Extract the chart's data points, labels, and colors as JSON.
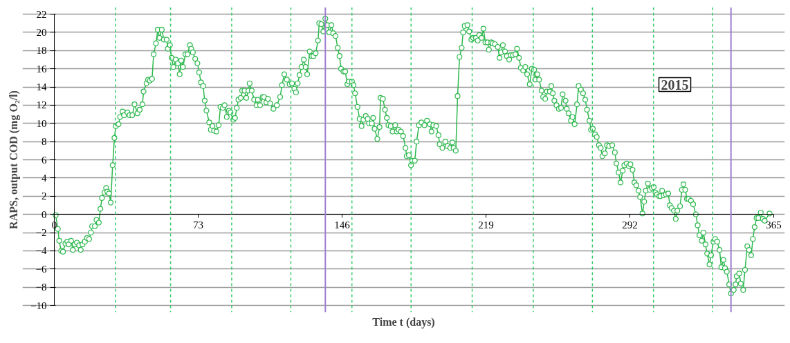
{
  "chart_data": {
    "type": "line",
    "xlabel": "Time t (days)",
    "ylabel": "RAPS, output COD (mg O₂/l)",
    "annotations": [
      "2015"
    ],
    "x": [
      0.7,
      1.8,
      2.5,
      3.5,
      4.4,
      5.6,
      6.6,
      7.3,
      8.6,
      9.4,
      10.4,
      11.5,
      12.6,
      13.4,
      14.3,
      15.5,
      16.6,
      17.7,
      18.6,
      19.2,
      20.6,
      21.4,
      22.6,
      23.4,
      24.2,
      25.5,
      26.3,
      26.9,
      27.8,
      28.6,
      29.6,
      30.5,
      31.2,
      32.6,
      33.4,
      34.6,
      35.4,
      37.1,
      38.2,
      39.6,
      40.7,
      42.2,
      43.3,
      44.7,
      45.3,
      46.8,
      47.6,
      48.5,
      49.6,
      50.4,
      51.6,
      52.5,
      53.4,
      54.5,
      55.6,
      57.0,
      57.6,
      58.7,
      59.5,
      60.4,
      61.6,
      62.7,
      63.6,
      64.4,
      65.3,
      66.5,
      67.6,
      68.8,
      69.5,
      70.3,
      71.5,
      72.6,
      73.5,
      74.4,
      75.5,
      76.3,
      77.2,
      78.6,
      79.4,
      80.3,
      81.1,
      82.3,
      83.4,
      84.3,
      85.5,
      86.4,
      87.5,
      88.6,
      89.4,
      90.8,
      91.7,
      92.6,
      93.4,
      94.6,
      95.3,
      96.5,
      97.4,
      98.5,
      99.1,
      100.2,
      101.4,
      102.6,
      103.3,
      104.4,
      105.7,
      106.5,
      107.6,
      108.4,
      109.5,
      111.2,
      112.9,
      114.6,
      115.5,
      116.7,
      118.0,
      119.4,
      120.6,
      121.8,
      122.6,
      123.5,
      124.4,
      125.4,
      126.6,
      127.5,
      128.3,
      129.6,
      130.6,
      131.5,
      132.6,
      133.8,
      134.4,
      135.5,
      136.5,
      137.5,
      138.6,
      139.5,
      140.6,
      141.5,
      142.7,
      143.8,
      144.7,
      145.5,
      146.7,
      147.6,
      148.7,
      149.5,
      151.0,
      151.8,
      152.6,
      153.8,
      154.9,
      155.9,
      156.8,
      158.0,
      159.0,
      159.7,
      161.1,
      161.8,
      162.5,
      163.9,
      165.0,
      165.5,
      166.7,
      167.8,
      168.7,
      169.5,
      170.7,
      171.6,
      173.0,
      173.8,
      174.7,
      175.9,
      177.0,
      178.2,
      178.8,
      179.9,
      181.0,
      181.6,
      182.9,
      183.8,
      185.0,
      186.3,
      187.8,
      189.1,
      190.6,
      191.4,
      192.3,
      193.8,
      194.9,
      195.5,
      196.9,
      198.4,
      199.5,
      200.9,
      202.0,
      202.6,
      203.7,
      204.6,
      205.6,
      206.7,
      207.4,
      208.2,
      209.6,
      210.5,
      211.6,
      212.5,
      213.9,
      214.8,
      215.6,
      216.8,
      217.7,
      218.7,
      219.8,
      220.5,
      221.7,
      222.5,
      223.6,
      225.0,
      225.9,
      226.7,
      227.6,
      228.7,
      229.6,
      230.8,
      231.6,
      232.7,
      233.9,
      234.8,
      235.8,
      236.7,
      237.9,
      239.0,
      239.9,
      241.2,
      242.3,
      243.4,
      244.0,
      245.1,
      246.0,
      247.2,
      248.0,
      249.1,
      249.9,
      251.4,
      252.2,
      252.9,
      253.7,
      254.8,
      256.0,
      257.1,
      257.9,
      259.4,
      260.0,
      260.9,
      262.1,
      262.9,
      264.0,
      265.2,
      266.0,
      267.2,
      268.3,
      269.4,
      270.3,
      271.5,
      272.3,
      273.2,
      274.3,
      275.2,
      276.3,
      277.2,
      278.1,
      279.3,
      280.4,
      281.5,
      283.1,
      284.4,
      285.2,
      286.3,
      287.3,
      288.4,
      289.2,
      290.4,
      291.5,
      292.3,
      293.4,
      294.3,
      295.3,
      296.4,
      297.2,
      298.4,
      299.3,
      300.1,
      301.2,
      302.1,
      303.3,
      304.1,
      305.0,
      305.8,
      306.9,
      307.5,
      308.4,
      309.2,
      310.3,
      311.5,
      312.3,
      313.2,
      314.4,
      315.3,
      316.1,
      317.5,
      318.4,
      319.2,
      320.1,
      321.0,
      321.8,
      323.0,
      324.1,
      325.5,
      326.4,
      327.3,
      328.5,
      329.3,
      330.4,
      331.2,
      332.4,
      333.2,
      334.4,
      335.3,
      336.3,
      337.5,
      338.4,
      339.5,
      340.3,
      341.2,
      342.4,
      343.3,
      344.7,
      345.6,
      346.2,
      347.5,
      348.3,
      349.5,
      350.4,
      351.6,
      352.5,
      353.6,
      354.4,
      355.3,
      356.3,
      357.2,
      358.4,
      359.5,
      360.4,
      362.9
    ],
    "series": [
      {
        "color": "#2db84d",
        "values": [
          -0.1,
          -1.6,
          -2.9,
          -4.0,
          -4.1,
          -3.2,
          -3.0,
          -3.3,
          -2.9,
          -3.9,
          -3.3,
          -3.1,
          -3.4,
          -3.9,
          -3.3,
          -3.0,
          -2.6,
          -2.7,
          -2.0,
          -1.3,
          -1.3,
          -0.6,
          -0.9,
          0.6,
          1.8,
          2.4,
          2.9,
          2.5,
          2.3,
          1.3,
          5.4,
          8.4,
          9.7,
          9.9,
          10.7,
          11.3,
          10.9,
          11.2,
          10.9,
          10.9,
          12.1,
          11.1,
          11.5,
          12.1,
          13.5,
          14.4,
          14.8,
          14.7,
          14.9,
          17.6,
          18.8,
          20.3,
          19.4,
          20.3,
          19.2,
          19.2,
          18.2,
          18.6,
          17.2,
          16.2,
          17.0,
          16.6,
          15.4,
          16.9,
          16.2,
          17.6,
          17.6,
          18.6,
          18.2,
          17.8,
          17.1,
          16.6,
          15.6,
          14.5,
          14.1,
          12.5,
          11.4,
          10.1,
          9.3,
          9.7,
          9.2,
          9.1,
          9.8,
          11.8,
          11.7,
          12.0,
          10.7,
          11.4,
          11.2,
          10.4,
          10.6,
          11.7,
          12.6,
          12.8,
          13.6,
          13.6,
          12.8,
          13.6,
          14.4,
          13.6,
          12.6,
          12.0,
          12.6,
          12.0,
          12.9,
          12.9,
          12.3,
          12.7,
          12.2,
          11.6,
          12.0,
          12.9,
          14.2,
          15.4,
          14.8,
          14.3,
          14.4,
          13.8,
          13.4,
          14.4,
          15.3,
          16.2,
          17.0,
          16.2,
          15.4,
          17.9,
          17.4,
          17.4,
          17.7,
          19.1,
          21.0,
          20.9,
          20.1,
          21.5,
          20.8,
          20.0,
          20.8,
          19.9,
          19.6,
          18.3,
          17.4,
          16.0,
          15.7,
          15.7,
          14.3,
          14.6,
          14.6,
          14.2,
          13.3,
          11.8,
          10.5,
          9.7,
          10.4,
          10.8,
          10.5,
          10.0,
          10.0,
          10.6,
          9.4,
          8.3,
          9.6,
          12.8,
          12.7,
          11.5,
          10.6,
          9.8,
          9.7,
          9.1,
          9.8,
          9.1,
          9.3,
          9.1,
          8.6,
          7.3,
          6.4,
          6.5,
          5.4,
          5.9,
          5.9,
          8.0,
          9.8,
          10.1,
          9.8,
          10.3,
          9.9,
          9.1,
          9.8,
          9.7,
          8.7,
          7.7,
          7.3,
          8.0,
          7.5,
          7.3,
          7.9,
          7.3,
          7.0,
          13.0,
          17.3,
          18.3,
          20.0,
          20.7,
          20.8,
          20.1,
          19.2,
          19.4,
          19.4,
          19.1,
          19.7,
          19.4,
          20.4,
          18.9,
          18.9,
          18.1,
          18.9,
          18.8,
          18.7,
          18.4,
          17.2,
          17.8,
          18.6,
          17.9,
          17.4,
          17.0,
          17.5,
          17.5,
          17.6,
          18.2,
          17.2,
          16.1,
          15.8,
          16.2,
          15.4,
          14.3,
          16.0,
          15.9,
          14.8,
          15.4,
          14.8,
          13.6,
          12.9,
          12.7,
          13.5,
          13.5,
          14.1,
          13.3,
          12.5,
          12.0,
          11.6,
          11.7,
          13.2,
          12.5,
          11.6,
          11.1,
          10.3,
          10.7,
          9.9,
          12.1,
          14.1,
          13.7,
          13.3,
          12.6,
          11.5,
          10.3,
          9.3,
          9.4,
          8.8,
          8.5,
          7.6,
          7.3,
          6.4,
          6.7,
          7.6,
          7.5,
          7.6,
          6.8,
          5.6,
          4.6,
          3.5,
          4.8,
          5.4,
          5.6,
          5.3,
          5.5,
          4.9,
          3.5,
          3.2,
          2.6,
          1.9,
          0.1,
          1.4,
          2.6,
          3.4,
          2.7,
          2.9,
          3.0,
          2.4,
          2.2,
          2.0,
          2.0,
          2.6,
          2.1,
          2.2,
          2.3,
          1.0,
          0.7,
          0.4,
          -0.5,
          0.4,
          0.9,
          2.7,
          3.3,
          2.7,
          1.7,
          1.7,
          1.5,
          1.1,
          0.0,
          -1.2,
          -2.3,
          -2.9,
          -2.0,
          -3.3,
          -4.3,
          -5.5,
          -4.5,
          -3.0,
          -2.7,
          -3.0,
          -3.9,
          -5.8,
          -5.0,
          -5.9,
          -6.3,
          -7.7,
          -8.7,
          -8.3,
          -7.7,
          -6.8,
          -6.5,
          -7.6,
          -8.3,
          -6.1,
          -3.5,
          -3.9,
          -4.5,
          -2.7,
          -1.4,
          -0.4,
          -0.4,
          0.2,
          -0.5,
          -0.7,
          0.1
        ]
      }
    ],
    "xlim": [
      0,
      365
    ],
    "xticks": [
      0,
      73,
      146,
      219,
      292,
      365
    ],
    "ylim": [
      -10,
      22
    ],
    "yticks": [
      -10,
      -8,
      -6,
      -4,
      -2,
      0,
      2,
      4,
      6,
      8,
      10,
      12,
      14,
      16,
      18,
      20,
      22
    ],
    "grid": "y",
    "marker": "circle",
    "line_style": "solid",
    "ref_lines": [
      {
        "axis": "x",
        "value": 31,
        "color": "#33cc66",
        "line_style": "dashed"
      },
      {
        "axis": "x",
        "value": 59,
        "color": "#33cc66",
        "line_style": "dashed"
      },
      {
        "axis": "x",
        "value": 90,
        "color": "#33cc66",
        "line_style": "dashed"
      },
      {
        "axis": "x",
        "value": 120,
        "color": "#33cc66",
        "line_style": "dashed"
      },
      {
        "axis": "x",
        "value": 151,
        "color": "#33cc66",
        "line_style": "dashed"
      },
      {
        "axis": "x",
        "value": 181,
        "color": "#33cc66",
        "line_style": "dashed"
      },
      {
        "axis": "x",
        "value": 212,
        "color": "#33cc66",
        "line_style": "dashed"
      },
      {
        "axis": "x",
        "value": 243,
        "color": "#33cc66",
        "line_style": "dashed"
      },
      {
        "axis": "x",
        "value": 273,
        "color": "#33cc66",
        "line_style": "dashed"
      },
      {
        "axis": "x",
        "value": 304,
        "color": "#33cc66",
        "line_style": "dashed"
      },
      {
        "axis": "x",
        "value": 334,
        "color": "#33cc66",
        "line_style": "dashed"
      },
      {
        "axis": "x",
        "value": 137.5,
        "color": "#9f7fd0",
        "line_style": "solid"
      },
      {
        "axis": "x",
        "value": 343.3,
        "color": "#9f7fd0",
        "line_style": "solid"
      }
    ]
  }
}
